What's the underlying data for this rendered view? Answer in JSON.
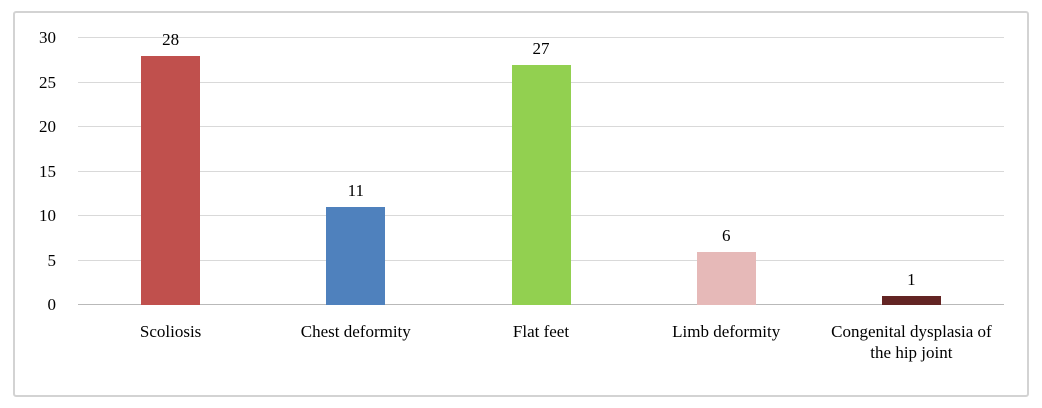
{
  "chart_data": {
    "type": "bar",
    "title": "",
    "xlabel": "",
    "ylabel": "",
    "categories": [
      "Scoliosis",
      "Chest deformity",
      "Flat feet",
      "Limb deformity",
      "Congenital dysplasia of the hip joint"
    ],
    "values": [
      28,
      11,
      27,
      6,
      1
    ],
    "data_labels": [
      "28",
      "11",
      "27",
      "6",
      "1"
    ],
    "bar_colors": [
      "#c0504d",
      "#4f81bd",
      "#92d050",
      "#e6b9b8",
      "#632423"
    ],
    "ylim": [
      0,
      30
    ],
    "yticks": [
      0,
      5,
      10,
      15,
      20,
      25,
      30
    ],
    "grid": "horizontal",
    "legend": "none"
  },
  "style": {
    "frame_border_color": "#d3d3d3",
    "gridline_color": "#d9d9d9",
    "axis_line_color": "#b9b9b9",
    "background": "#ffffff",
    "text_color": "#000000"
  }
}
